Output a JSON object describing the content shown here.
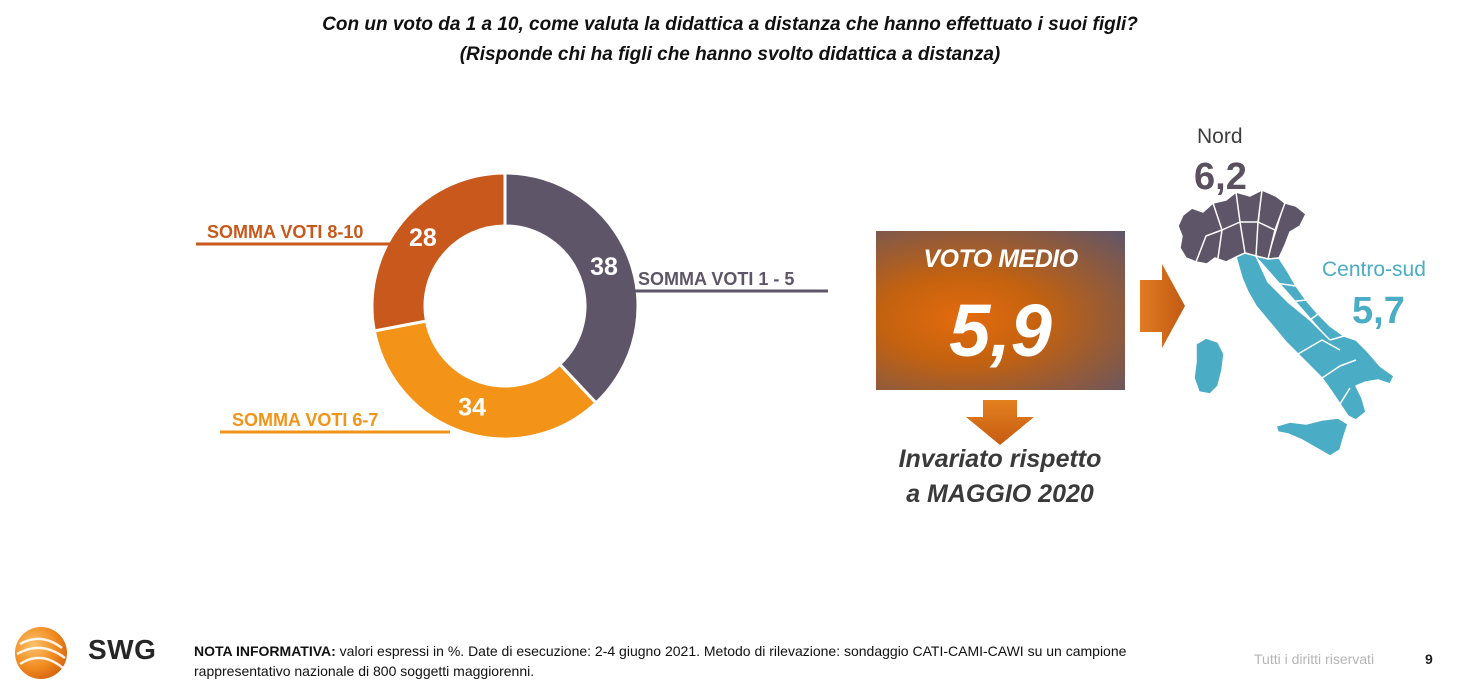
{
  "title": {
    "line1": "Con un voto da 1 a 10, come valuta la didattica a distanza che hanno effettuato i suoi figli?",
    "line2": "(Risponde chi ha figli che hanno svolto didattica a distanza)"
  },
  "chart_data": {
    "type": "pie",
    "subtype": "donut",
    "categories": [
      "SOMMA VOTI 1 - 5",
      "SOMMA VOTI 6-7",
      "SOMMA VOTI 8-10"
    ],
    "values": [
      38,
      34,
      28
    ],
    "unit": "%",
    "colors": [
      "#5e5668",
      "#f39419",
      "#c8581b"
    ],
    "legend": "none"
  },
  "voto_medio": {
    "label": "VOTO MEDIO",
    "value": "5,9",
    "note_line1": "Invariato rispetto",
    "note_line2": "a MAGGIO 2020"
  },
  "regions": {
    "nord": {
      "name": "Nord",
      "value": "6,2",
      "color": "#5e5668"
    },
    "centro_sud": {
      "name": "Centro-sud",
      "value": "5,7",
      "color": "#4bacc6"
    }
  },
  "footer": {
    "logo_text": "SWG",
    "note_label": "NOTA INFORMATIVA:",
    "note_text": " valori espressi in %. Date di esecuzione: 2-4 giugno 2021. Metodo di rilevazione: sondaggio CATI-CAMI-CAWI su un campione rappresentativo nazionale di 800 soggetti maggiorenni.",
    "rights": "Tutti i diritti riservati",
    "page": "9"
  }
}
